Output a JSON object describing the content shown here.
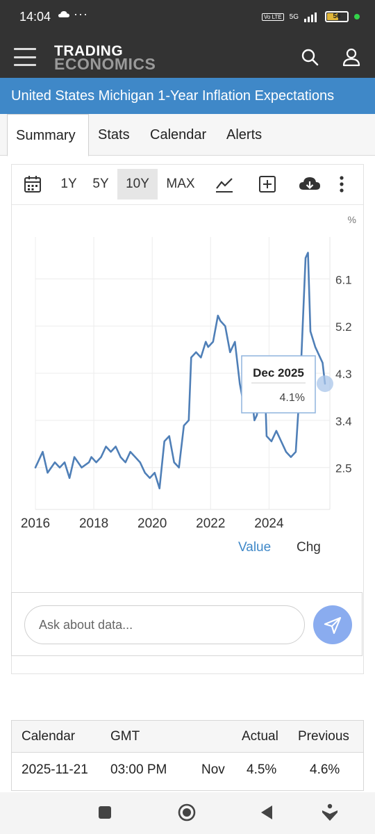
{
  "status_bar": {
    "time": "14:04",
    "dots": "···",
    "network": "5G",
    "volte": "Vo LTE",
    "battery": "56"
  },
  "app_bar": {
    "brand_line1": "TRADING",
    "brand_line2": "ECONOMICS"
  },
  "page": {
    "title": "United States Michigan 1-Year Inflation Expectations"
  },
  "tabs": [
    {
      "label": "Summary",
      "active": true
    },
    {
      "label": "Stats",
      "active": false
    },
    {
      "label": "Calendar",
      "active": false
    },
    {
      "label": "Alerts",
      "active": false
    }
  ],
  "range_buttons": [
    {
      "label": "1Y",
      "selected": false
    },
    {
      "label": "5Y",
      "selected": false
    },
    {
      "label": "10Y",
      "selected": true
    },
    {
      "label": "MAX",
      "selected": false
    }
  ],
  "toolbar_icons": [
    "calendar-icon",
    "line-chart-icon",
    "add-icon",
    "download-icon",
    "more-vertical-icon"
  ],
  "chart_data": {
    "type": "line",
    "unit": "%",
    "x_ticks": [
      "2016",
      "2018",
      "2020",
      "2022",
      "2024"
    ],
    "y_ticks": [
      "2.5",
      "3.4",
      "4.3",
      "5.2",
      "6.1"
    ],
    "xlim": [
      "2016-01",
      "2026-02"
    ],
    "ylim": [
      1.7,
      6.9
    ],
    "grid": true,
    "line_color": "#4f7fb7",
    "series": [
      {
        "points": [
          [
            "2016-01",
            2.5
          ],
          [
            "2016-04",
            2.8
          ],
          [
            "2016-06",
            2.4
          ],
          [
            "2016-09",
            2.6
          ],
          [
            "2016-11",
            2.5
          ],
          [
            "2017-01",
            2.6
          ],
          [
            "2017-03",
            2.3
          ],
          [
            "2017-05",
            2.7
          ],
          [
            "2017-08",
            2.5
          ],
          [
            "2017-11",
            2.6
          ],
          [
            "2017-12",
            2.7
          ],
          [
            "2018-02",
            2.6
          ],
          [
            "2018-04",
            2.7
          ],
          [
            "2018-06",
            2.9
          ],
          [
            "2018-08",
            2.8
          ],
          [
            "2018-10",
            2.9
          ],
          [
            "2018-12",
            2.7
          ],
          [
            "2019-02",
            2.6
          ],
          [
            "2019-04",
            2.8
          ],
          [
            "2019-06",
            2.7
          ],
          [
            "2019-08",
            2.6
          ],
          [
            "2019-10",
            2.4
          ],
          [
            "2019-12",
            2.3
          ],
          [
            "2020-02",
            2.4
          ],
          [
            "2020-04",
            2.1
          ],
          [
            "2020-06",
            3.0
          ],
          [
            "2020-08",
            3.1
          ],
          [
            "2020-10",
            2.6
          ],
          [
            "2020-12",
            2.5
          ],
          [
            "2021-02",
            3.3
          ],
          [
            "2021-04",
            3.4
          ],
          [
            "2021-05",
            4.6
          ],
          [
            "2021-07",
            4.7
          ],
          [
            "2021-09",
            4.6
          ],
          [
            "2021-11",
            4.9
          ],
          [
            "2021-12",
            4.8
          ],
          [
            "2022-02",
            4.9
          ],
          [
            "2022-04",
            5.4
          ],
          [
            "2022-05",
            5.3
          ],
          [
            "2022-07",
            5.2
          ],
          [
            "2022-09",
            4.7
          ],
          [
            "2022-11",
            4.9
          ],
          [
            "2023-01",
            4.1
          ],
          [
            "2023-03",
            3.6
          ],
          [
            "2023-05",
            4.2
          ],
          [
            "2023-07",
            3.4
          ],
          [
            "2023-08",
            3.5
          ],
          [
            "2023-10",
            4.2
          ],
          [
            "2023-11",
            4.5
          ],
          [
            "2023-12",
            3.1
          ],
          [
            "2024-02",
            3.0
          ],
          [
            "2024-04",
            3.2
          ],
          [
            "2024-06",
            3.0
          ],
          [
            "2024-08",
            2.8
          ],
          [
            "2024-10",
            2.7
          ],
          [
            "2024-12",
            2.8
          ],
          [
            "2025-02",
            4.3
          ],
          [
            "2025-04",
            6.5
          ],
          [
            "2025-05",
            6.6
          ],
          [
            "2025-06",
            5.1
          ],
          [
            "2025-08",
            4.8
          ],
          [
            "2025-10",
            4.6
          ],
          [
            "2025-11",
            4.5
          ],
          [
            "2025-12",
            4.1
          ]
        ]
      }
    ]
  },
  "tooltip": {
    "date": "Dec 2025",
    "value": "4.1%"
  },
  "legend": {
    "value_label": "Value",
    "change_label": "Chg",
    "value_color": "#3f88c8"
  },
  "ask": {
    "placeholder": "Ask about data..."
  },
  "calendar_table": {
    "headers": [
      "Calendar",
      "GMT",
      "",
      "Actual",
      "Previous"
    ],
    "rows": [
      [
        "2025-11-21",
        "03:00 PM",
        "Nov",
        "4.5%",
        "4.6%"
      ]
    ]
  }
}
